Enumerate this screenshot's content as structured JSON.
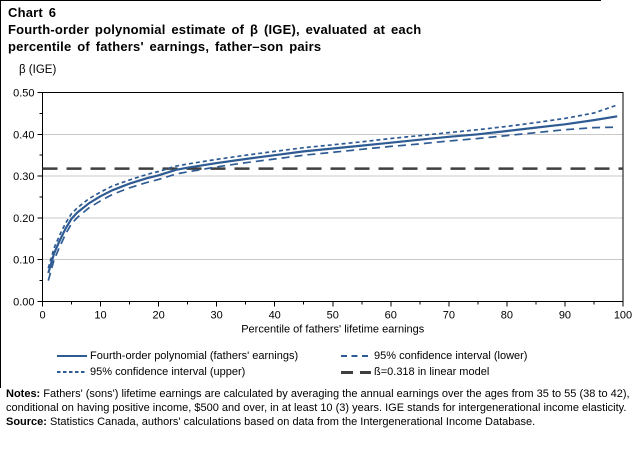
{
  "header": {
    "chart_number": "Chart 6",
    "title_line1": "Fourth-order polynomial estimate of β (IGE), evaluated at each",
    "title_line2": "percentile of fathers' earnings, father–son pairs"
  },
  "chart_data": {
    "type": "line",
    "ylabel": "β (IGE)",
    "xlabel": "Percentile of fathers' lifetime earnings",
    "xlim": [
      0,
      100
    ],
    "ylim": [
      0,
      0.5
    ],
    "xticks": [
      0,
      10,
      20,
      30,
      40,
      50,
      60,
      70,
      80,
      90,
      100
    ],
    "xtick_minor_step": 5,
    "yticks": [
      0.0,
      0.1,
      0.2,
      0.3,
      0.4,
      0.5
    ],
    "ytick_decimals": 2,
    "grid": "horizontal",
    "series": [
      {
        "name": "Fourth-order polynomial (fathers' earnings)",
        "style": "solid",
        "color": "#2F5B93",
        "x": [
          1,
          2,
          3,
          4,
          5,
          6,
          8,
          10,
          12,
          15,
          18,
          20,
          23,
          25,
          30,
          35,
          40,
          45,
          50,
          55,
          60,
          65,
          70,
          75,
          80,
          85,
          90,
          95,
          99
        ],
        "y": [
          0.068,
          0.115,
          0.147,
          0.175,
          0.198,
          0.213,
          0.235,
          0.252,
          0.266,
          0.282,
          0.295,
          0.302,
          0.315,
          0.32,
          0.331,
          0.341,
          0.35,
          0.359,
          0.366,
          0.373,
          0.38,
          0.387,
          0.394,
          0.4,
          0.408,
          0.416,
          0.424,
          0.434,
          0.443
        ]
      },
      {
        "name": "95% confidence interval (lower)",
        "style": "dash-medium",
        "color": "#2F5B93",
        "x": [
          1,
          2,
          3,
          4,
          5,
          6,
          8,
          10,
          12,
          15,
          18,
          20,
          23,
          25,
          30,
          35,
          40,
          45,
          50,
          55,
          60,
          65,
          70,
          75,
          80,
          85,
          90,
          95,
          99
        ],
        "y": [
          0.05,
          0.1,
          0.132,
          0.162,
          0.186,
          0.201,
          0.224,
          0.241,
          0.256,
          0.272,
          0.285,
          0.292,
          0.305,
          0.31,
          0.322,
          0.332,
          0.341,
          0.35,
          0.357,
          0.364,
          0.371,
          0.377,
          0.384,
          0.39,
          0.397,
          0.404,
          0.411,
          0.416,
          0.417
        ]
      },
      {
        "name": "95% confidence interval (upper)",
        "style": "dash-short",
        "color": "#2F5B93",
        "x": [
          1,
          2,
          3,
          4,
          5,
          6,
          8,
          10,
          12,
          15,
          18,
          20,
          23,
          25,
          30,
          35,
          40,
          45,
          50,
          55,
          60,
          65,
          70,
          75,
          80,
          85,
          90,
          95,
          99
        ],
        "y": [
          0.08,
          0.128,
          0.16,
          0.188,
          0.21,
          0.224,
          0.246,
          0.262,
          0.276,
          0.291,
          0.304,
          0.311,
          0.324,
          0.329,
          0.34,
          0.35,
          0.359,
          0.368,
          0.375,
          0.382,
          0.39,
          0.397,
          0.404,
          0.411,
          0.419,
          0.428,
          0.438,
          0.451,
          0.47
        ]
      },
      {
        "name": "ß=0.318 in linear model",
        "style": "dash-long",
        "color": "#3F3F3F",
        "x": [
          0,
          100
        ],
        "y": [
          0.318,
          0.318
        ]
      }
    ]
  },
  "legend": {
    "items": [
      {
        "label": "Fourth-order polynomial (fathers' earnings)",
        "swatch": "solid",
        "color": "#2F5B93"
      },
      {
        "label": "95% confidence interval (lower)",
        "swatch": "dash-medium",
        "color": "#2F5B93"
      },
      {
        "label": "95% confidence interval (upper)",
        "swatch": "dash-short",
        "color": "#2F5B93"
      },
      {
        "label": "ß=0.318 in linear model",
        "swatch": "dash-long",
        "color": "#3F3F3F"
      }
    ]
  },
  "notes": {
    "label": "Notes:",
    "text": "Fathers' (sons') lifetime earnings are calculated by averaging the annual earnings over the ages from 35 to 55 (38 to 42), conditional on having positive income, $500 and over, in at least 10 (3) years. IGE stands for intergenerational income elasticity."
  },
  "source": {
    "label": "Source:",
    "text": "Statistics Canada, authors' calculations based on data from the Intergenerational Income Database."
  },
  "colors": {
    "line_blue": "#2F5B93",
    "line_dark": "#3F3F3F",
    "gridline": "#C9C9C9",
    "axis": "#000000"
  }
}
